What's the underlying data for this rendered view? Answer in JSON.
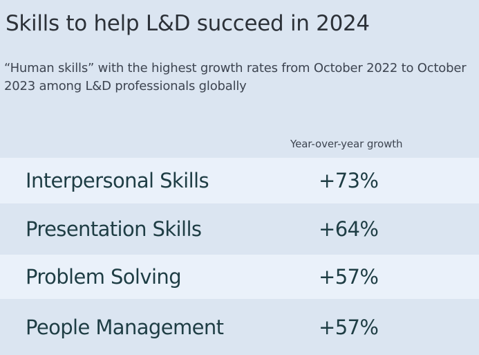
{
  "chart_data": {
    "type": "table",
    "title": "Skills to help L&D succeed in 2024",
    "subtitle": "“Human skills” with the highest growth rates from October 2022 to October 2023 among L&D professionals globally",
    "column_header": "Year-over-year growth",
    "rows": [
      {
        "label": "Interpersonal Skills",
        "value": 73,
        "value_label": "+73%"
      },
      {
        "label": "Presentation Skills",
        "value": 64,
        "value_label": "+64%"
      },
      {
        "label": "Problem Solving",
        "value": 57,
        "value_label": "+57%"
      },
      {
        "label": "People Management",
        "value": 57,
        "value_label": "+57%"
      }
    ],
    "colors": {
      "background": "#dbe5f1",
      "row_alt": "#eaf1fa",
      "row_text": "#1e3d44",
      "title_text": "#2c3138"
    }
  }
}
